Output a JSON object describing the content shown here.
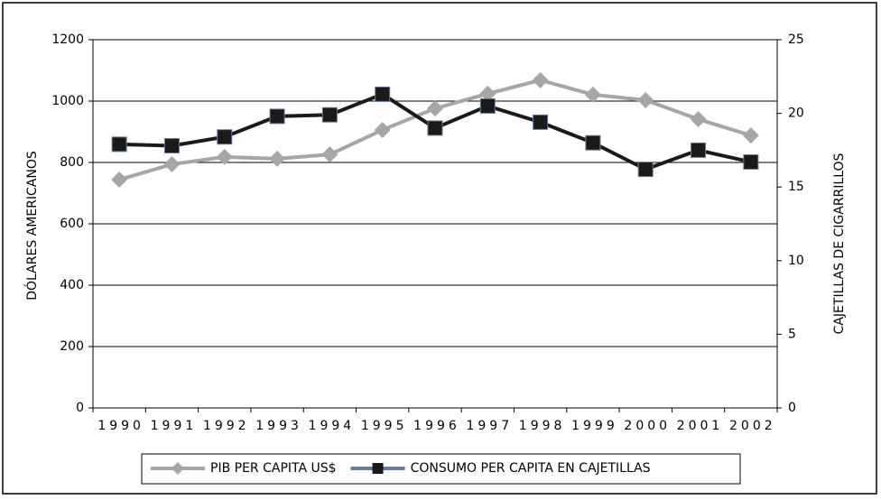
{
  "chart_data": {
    "type": "line",
    "categories": [
      "1990",
      "1991",
      "1992",
      "1993",
      "1994",
      "1995",
      "1996",
      "1997",
      "1998",
      "1999",
      "2000",
      "2001",
      "2002"
    ],
    "y_label": "DÓLARES AMERICANOS",
    "y2_label": "CAJETILLAS DE CIGARRILLOS",
    "ylim": [
      0,
      1200
    ],
    "yticks": [
      0,
      200,
      400,
      600,
      800,
      1000,
      1200
    ],
    "y2lim": [
      0,
      25
    ],
    "y2ticks": [
      0,
      5,
      10,
      15,
      20,
      25
    ],
    "grid": true,
    "legend": "bottom",
    "series": [
      {
        "name": "PIB PER CAPITA US$",
        "color": "#a6a6a6",
        "marker": "diamond",
        "values": [
          744,
          794,
          818,
          812,
          826,
          906,
          976,
          1024,
          1068,
          1021,
          1003,
          941,
          888
        ]
      },
      {
        "name": "CONSUMO PER CAPITA EN CAJETILLAS",
        "color": "#1a1a1a",
        "marker": "square",
        "axis": "y2",
        "values": [
          17.9,
          17.8,
          18.4,
          19.8,
          19.9,
          21.3,
          19.0,
          20.5,
          19.4,
          18.0,
          16.2,
          17.5,
          16.7
        ]
      }
    ]
  }
}
